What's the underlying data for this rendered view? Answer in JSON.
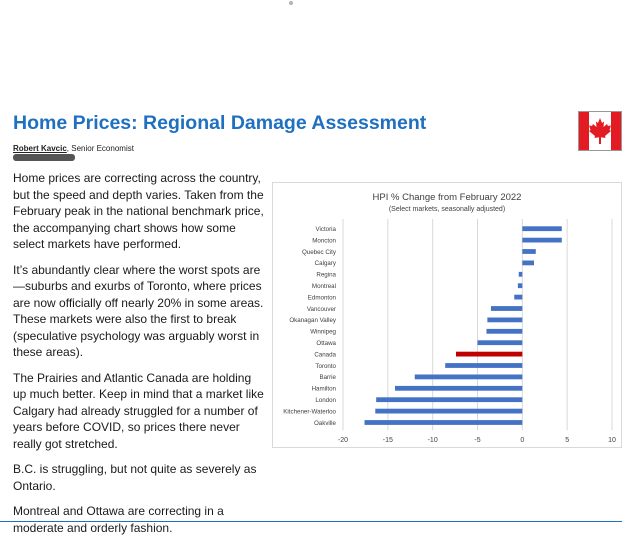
{
  "page": {
    "title": "Home Prices: Regional Damage Assessment",
    "author_name": "Robert Kavcic",
    "author_role": ", Senior Economist",
    "paragraphs": [
      "Home prices are correcting across the country, but the speed and depth varies. Taken from the February peak in the national benchmark price, the accompanying chart shows how some select markets have performed.",
      "It’s abundantly clear where the worst spots are—suburbs and exurbs of Toronto, where prices are now officially off nearly 20% in some areas. These markets were also the first to break (speculative psychology was arguably worst in these areas).",
      "The Prairies and Atlantic Canada are holding up much better. Keep in mind that a market like Calgary had already struggled for a number of years before COVID, so prices there never really got stretched.",
      "B.C. is struggling, but not quite as severely as Ontario.",
      "Montreal and Ottawa are correcting in a moderate and orderly fashion."
    ],
    "flag_icon": "canada-flag-icon"
  },
  "chart_data": {
    "type": "bar",
    "orientation": "horizontal",
    "title": "HPI % Change from February 2022",
    "subtitle": "(Select markets, seasonally adjusted)",
    "categories": [
      "Victoria",
      "Moncton",
      "Quebec City",
      "Calgary",
      "Regina",
      "Montreal",
      "Edmonton",
      "Vancouver",
      "Okanagan Valley",
      "Winnipeg",
      "Ottawa",
      "Canada",
      "Toronto",
      "Barrie",
      "Hamilton",
      "London",
      "Kitchener-Waterloo",
      "Oakville"
    ],
    "values": [
      4.4,
      4.4,
      1.5,
      1.3,
      -0.4,
      -0.5,
      -0.9,
      -3.5,
      -3.9,
      -4.0,
      -5.0,
      -7.4,
      -8.6,
      -12.0,
      -14.2,
      -16.3,
      -16.4,
      -17.6
    ],
    "highlight_category": "Canada",
    "xlim": [
      -20,
      10
    ],
    "xticks": [
      -20,
      -15,
      -10,
      -5,
      0,
      5,
      10
    ],
    "grid": "vertical",
    "colors": {
      "bar": "#4472c4",
      "highlight": "#c00000",
      "grid": "#d9d9d9",
      "text": "#404040"
    }
  }
}
